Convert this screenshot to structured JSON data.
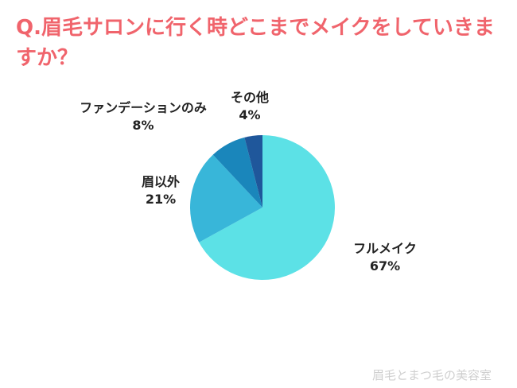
{
  "chart_data": {
    "type": "pie",
    "title": "Q.眉毛サロンに行く時どこまでメイクをしていきますか？",
    "slices": [
      {
        "name": "フルメイク",
        "value": 67,
        "value_label": "67%",
        "color": "#5ce1e6"
      },
      {
        "name": "眉以外",
        "value": 21,
        "value_label": "21%",
        "color": "#38b6d9"
      },
      {
        "name": "ファンデーションのみ",
        "value": 8,
        "value_label": "8%",
        "color": "#1a86bb"
      },
      {
        "name": "その他",
        "value": 4,
        "value_label": "4%",
        "color": "#1f579b"
      }
    ],
    "start": "12 o'clock",
    "direction": "clockwise",
    "legend": "none"
  },
  "watermark": "眉毛とまつ毛の美容室"
}
